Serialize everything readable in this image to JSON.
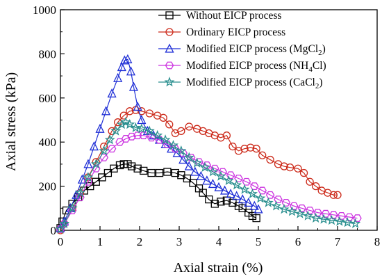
{
  "chart_data": {
    "type": "line",
    "xlabel": "Axial strain (%)",
    "ylabel": "Axial stress (kPa)",
    "xlim": [
      0,
      8
    ],
    "ylim": [
      0,
      1000
    ],
    "x_ticks": [
      0,
      1,
      2,
      3,
      4,
      5,
      6,
      7,
      8
    ],
    "y_ticks": [
      0,
      200,
      400,
      600,
      800,
      1000
    ],
    "legend_position": "top-right",
    "series": [
      {
        "name": "Without EICP process",
        "legend_parts": [
          {
            "t": "Without EICP process"
          }
        ],
        "color": "#000000",
        "marker": "square",
        "x": [
          0,
          0.05,
          0.15,
          0.3,
          0.45,
          0.6,
          0.75,
          0.9,
          1.05,
          1.2,
          1.35,
          1.5,
          1.6,
          1.7,
          1.8,
          1.95,
          2.1,
          2.3,
          2.5,
          2.7,
          2.9,
          3.05,
          3.2,
          3.35,
          3.5,
          3.6,
          3.75,
          3.9,
          4.05,
          4.2,
          4.35,
          4.5,
          4.6,
          4.75,
          4.85,
          4.95
        ],
        "y": [
          10,
          40,
          90,
          120,
          150,
          180,
          200,
          220,
          240,
          260,
          280,
          295,
          300,
          300,
          290,
          280,
          270,
          260,
          260,
          265,
          260,
          250,
          235,
          215,
          190,
          170,
          140,
          120,
          130,
          135,
          125,
          110,
          100,
          80,
          65,
          55
        ]
      },
      {
        "name": "Ordinary EICP process",
        "legend_parts": [
          {
            "t": "Ordinary EICP process"
          }
        ],
        "color": "#cc2a1a",
        "marker": "circle",
        "x": [
          0,
          0.1,
          0.3,
          0.5,
          0.7,
          0.9,
          1.1,
          1.3,
          1.45,
          1.6,
          1.75,
          1.9,
          2.05,
          2.25,
          2.45,
          2.6,
          2.75,
          2.9,
          3.05,
          3.25,
          3.45,
          3.6,
          3.75,
          3.9,
          4.05,
          4.2,
          4.35,
          4.5,
          4.65,
          4.8,
          4.95,
          5.1,
          5.3,
          5.5,
          5.65,
          5.8,
          6.0,
          6.15,
          6.3,
          6.45,
          6.6,
          6.75,
          6.9,
          7.0
        ],
        "y": [
          0,
          30,
          100,
          170,
          240,
          310,
          380,
          450,
          490,
          520,
          540,
          545,
          540,
          530,
          520,
          510,
          480,
          440,
          450,
          470,
          460,
          450,
          440,
          430,
          420,
          430,
          380,
          360,
          370,
          375,
          370,
          340,
          320,
          300,
          290,
          285,
          280,
          260,
          220,
          200,
          180,
          170,
          160,
          160
        ]
      },
      {
        "name": "Modified EICP process (MgCl2)",
        "legend_parts": [
          {
            "t": "Modified EICP process (MgCl"
          },
          {
            "t": "2",
            "sub": true
          },
          {
            "t": ")"
          }
        ],
        "color": "#1f2fd6",
        "marker": "triangle",
        "x": [
          0,
          0.1,
          0.25,
          0.4,
          0.55,
          0.7,
          0.85,
          1.0,
          1.15,
          1.3,
          1.45,
          1.55,
          1.62,
          1.7,
          1.78,
          1.85,
          1.95,
          2.05,
          2.2,
          2.35,
          2.5,
          2.65,
          2.8,
          2.95,
          3.1,
          3.25,
          3.4,
          3.55,
          3.7,
          3.85,
          4.0,
          4.15,
          4.3,
          4.45,
          4.6,
          4.75,
          4.9,
          5.0
        ],
        "y": [
          10,
          40,
          100,
          160,
          230,
          300,
          380,
          460,
          540,
          620,
          690,
          740,
          770,
          775,
          720,
          650,
          560,
          500,
          450,
          430,
          410,
          390,
          370,
          350,
          320,
          290,
          265,
          245,
          225,
          210,
          195,
          180,
          165,
          155,
          140,
          125,
          110,
          95
        ]
      },
      {
        "name": "Modified EICP process (NH4Cl)",
        "legend_parts": [
          {
            "t": "Modified EICP process (NH"
          },
          {
            "t": "4",
            "sub": true
          },
          {
            "t": "Cl)"
          }
        ],
        "color": "#cc33e0",
        "marker": "hexagon",
        "x": [
          0,
          0.1,
          0.3,
          0.5,
          0.7,
          0.9,
          1.1,
          1.3,
          1.5,
          1.65,
          1.8,
          1.95,
          2.1,
          2.3,
          2.5,
          2.7,
          2.9,
          3.1,
          3.3,
          3.5,
          3.7,
          3.9,
          4.1,
          4.3,
          4.5,
          4.7,
          4.9,
          5.1,
          5.3,
          5.5,
          5.7,
          5.9,
          6.1,
          6.3,
          6.5,
          6.7,
          6.9,
          7.1,
          7.3,
          7.5
        ],
        "y": [
          5,
          30,
          90,
          150,
          220,
          280,
          330,
          370,
          400,
          415,
          425,
          430,
          430,
          420,
          410,
          390,
          370,
          350,
          330,
          310,
          295,
          280,
          265,
          250,
          235,
          220,
          200,
          180,
          160,
          140,
          125,
          110,
          100,
          90,
          80,
          75,
          70,
          65,
          60,
          55
        ]
      },
      {
        "name": "Modified EICP process (CaCl2)",
        "legend_parts": [
          {
            "t": "Modified EICP process (CaCl"
          },
          {
            "t": "2",
            "sub": true
          },
          {
            "t": ")"
          }
        ],
        "color": "#2a8f8f",
        "marker": "star",
        "x": [
          0,
          0.1,
          0.3,
          0.5,
          0.7,
          0.9,
          1.1,
          1.25,
          1.4,
          1.55,
          1.65,
          1.75,
          1.9,
          2.05,
          2.25,
          2.45,
          2.65,
          2.85,
          3.05,
          3.25,
          3.45,
          3.65,
          3.85,
          4.05,
          4.25,
          4.45,
          4.65,
          4.85,
          5.05,
          5.25,
          5.45,
          5.65,
          5.85,
          6.05,
          6.25,
          6.45,
          6.65,
          6.85,
          7.05,
          7.25,
          7.45
        ],
        "y": [
          5,
          30,
          100,
          170,
          240,
          300,
          360,
          410,
          450,
          480,
          490,
          480,
          465,
          460,
          450,
          430,
          410,
          385,
          360,
          330,
          305,
          285,
          265,
          245,
          225,
          205,
          185,
          165,
          145,
          125,
          110,
          95,
          85,
          75,
          65,
          55,
          50,
          45,
          40,
          35,
          30
        ]
      }
    ]
  }
}
